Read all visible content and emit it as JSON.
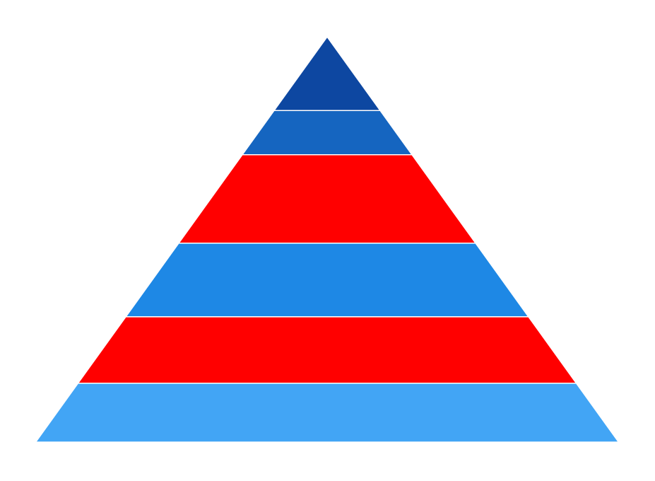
{
  "chart_data": {
    "type": "pyramid",
    "title": "",
    "order": "top-to-bottom",
    "segments": [
      {
        "value": 1.0,
        "color": "#0D47A1"
      },
      {
        "value": 0.6,
        "color": "#1565C0"
      },
      {
        "value": 1.2,
        "color": "#FF0000"
      },
      {
        "value": 1.0,
        "color": "#1E88E5"
      },
      {
        "value": 0.9,
        "color": "#FF0000"
      },
      {
        "value": 0.8,
        "color": "#42A5F5"
      }
    ],
    "legend": "none"
  }
}
